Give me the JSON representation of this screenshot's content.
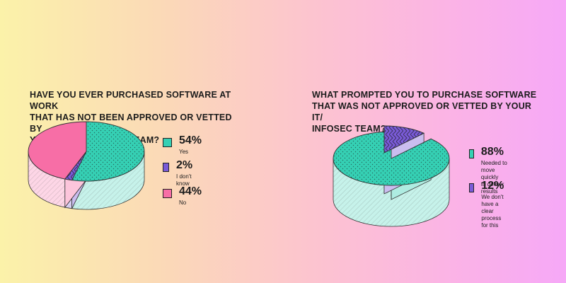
{
  "chart_data": [
    {
      "type": "pie",
      "title": "HAVE YOU EVER PURCHASED SOFTWARE AT WORK THAT HAS NOT BEEN APPROVED OR VETTED BY YOUR IT OR INFOSEC TEAM?",
      "title_lines": [
        "HAVE YOU EVER PURCHASED SOFTWARE AT WORK",
        "THAT HAS NOT BEEN APPROVED OR VETTED BY",
        "YOUR IT OR INFOSEC TEAM?"
      ],
      "slices": [
        {
          "label": "Yes",
          "value": 54,
          "value_label": "54%",
          "color": "#35d0b4"
        },
        {
          "label": "I don't know",
          "value": 2,
          "value_label": "2%",
          "color": "#7a5bd8"
        },
        {
          "label": "No",
          "value": 44,
          "value_label": "44%",
          "color": "#f76ea6"
        }
      ]
    },
    {
      "type": "pie",
      "title": "WHAT PROMPTED YOU TO PURCHASE SOFTWARE THAT WAS NOT APPROVED OR VETTED BY YOUR IT/ INFOSEC TEAM?",
      "title_lines": [
        "WHAT PROMPTED YOU TO PURCHASE SOFTWARE",
        "THAT WAS NOT APPROVED OR VETTED BY YOUR IT/",
        "INFOSEC TEAM?"
      ],
      "slices": [
        {
          "label": "Needed to move quickly to deliver results",
          "label_lines": [
            "Needed to move quickly",
            "to deliver results"
          ],
          "value": 88,
          "value_label": "88%",
          "color": "#35d0b4"
        },
        {
          "label": "We don't have a clear process for this",
          "label_lines": [
            "We don't have a clear",
            "process for this"
          ],
          "value": 12,
          "value_label": "12%",
          "color": "#7a5bd8"
        }
      ]
    }
  ]
}
